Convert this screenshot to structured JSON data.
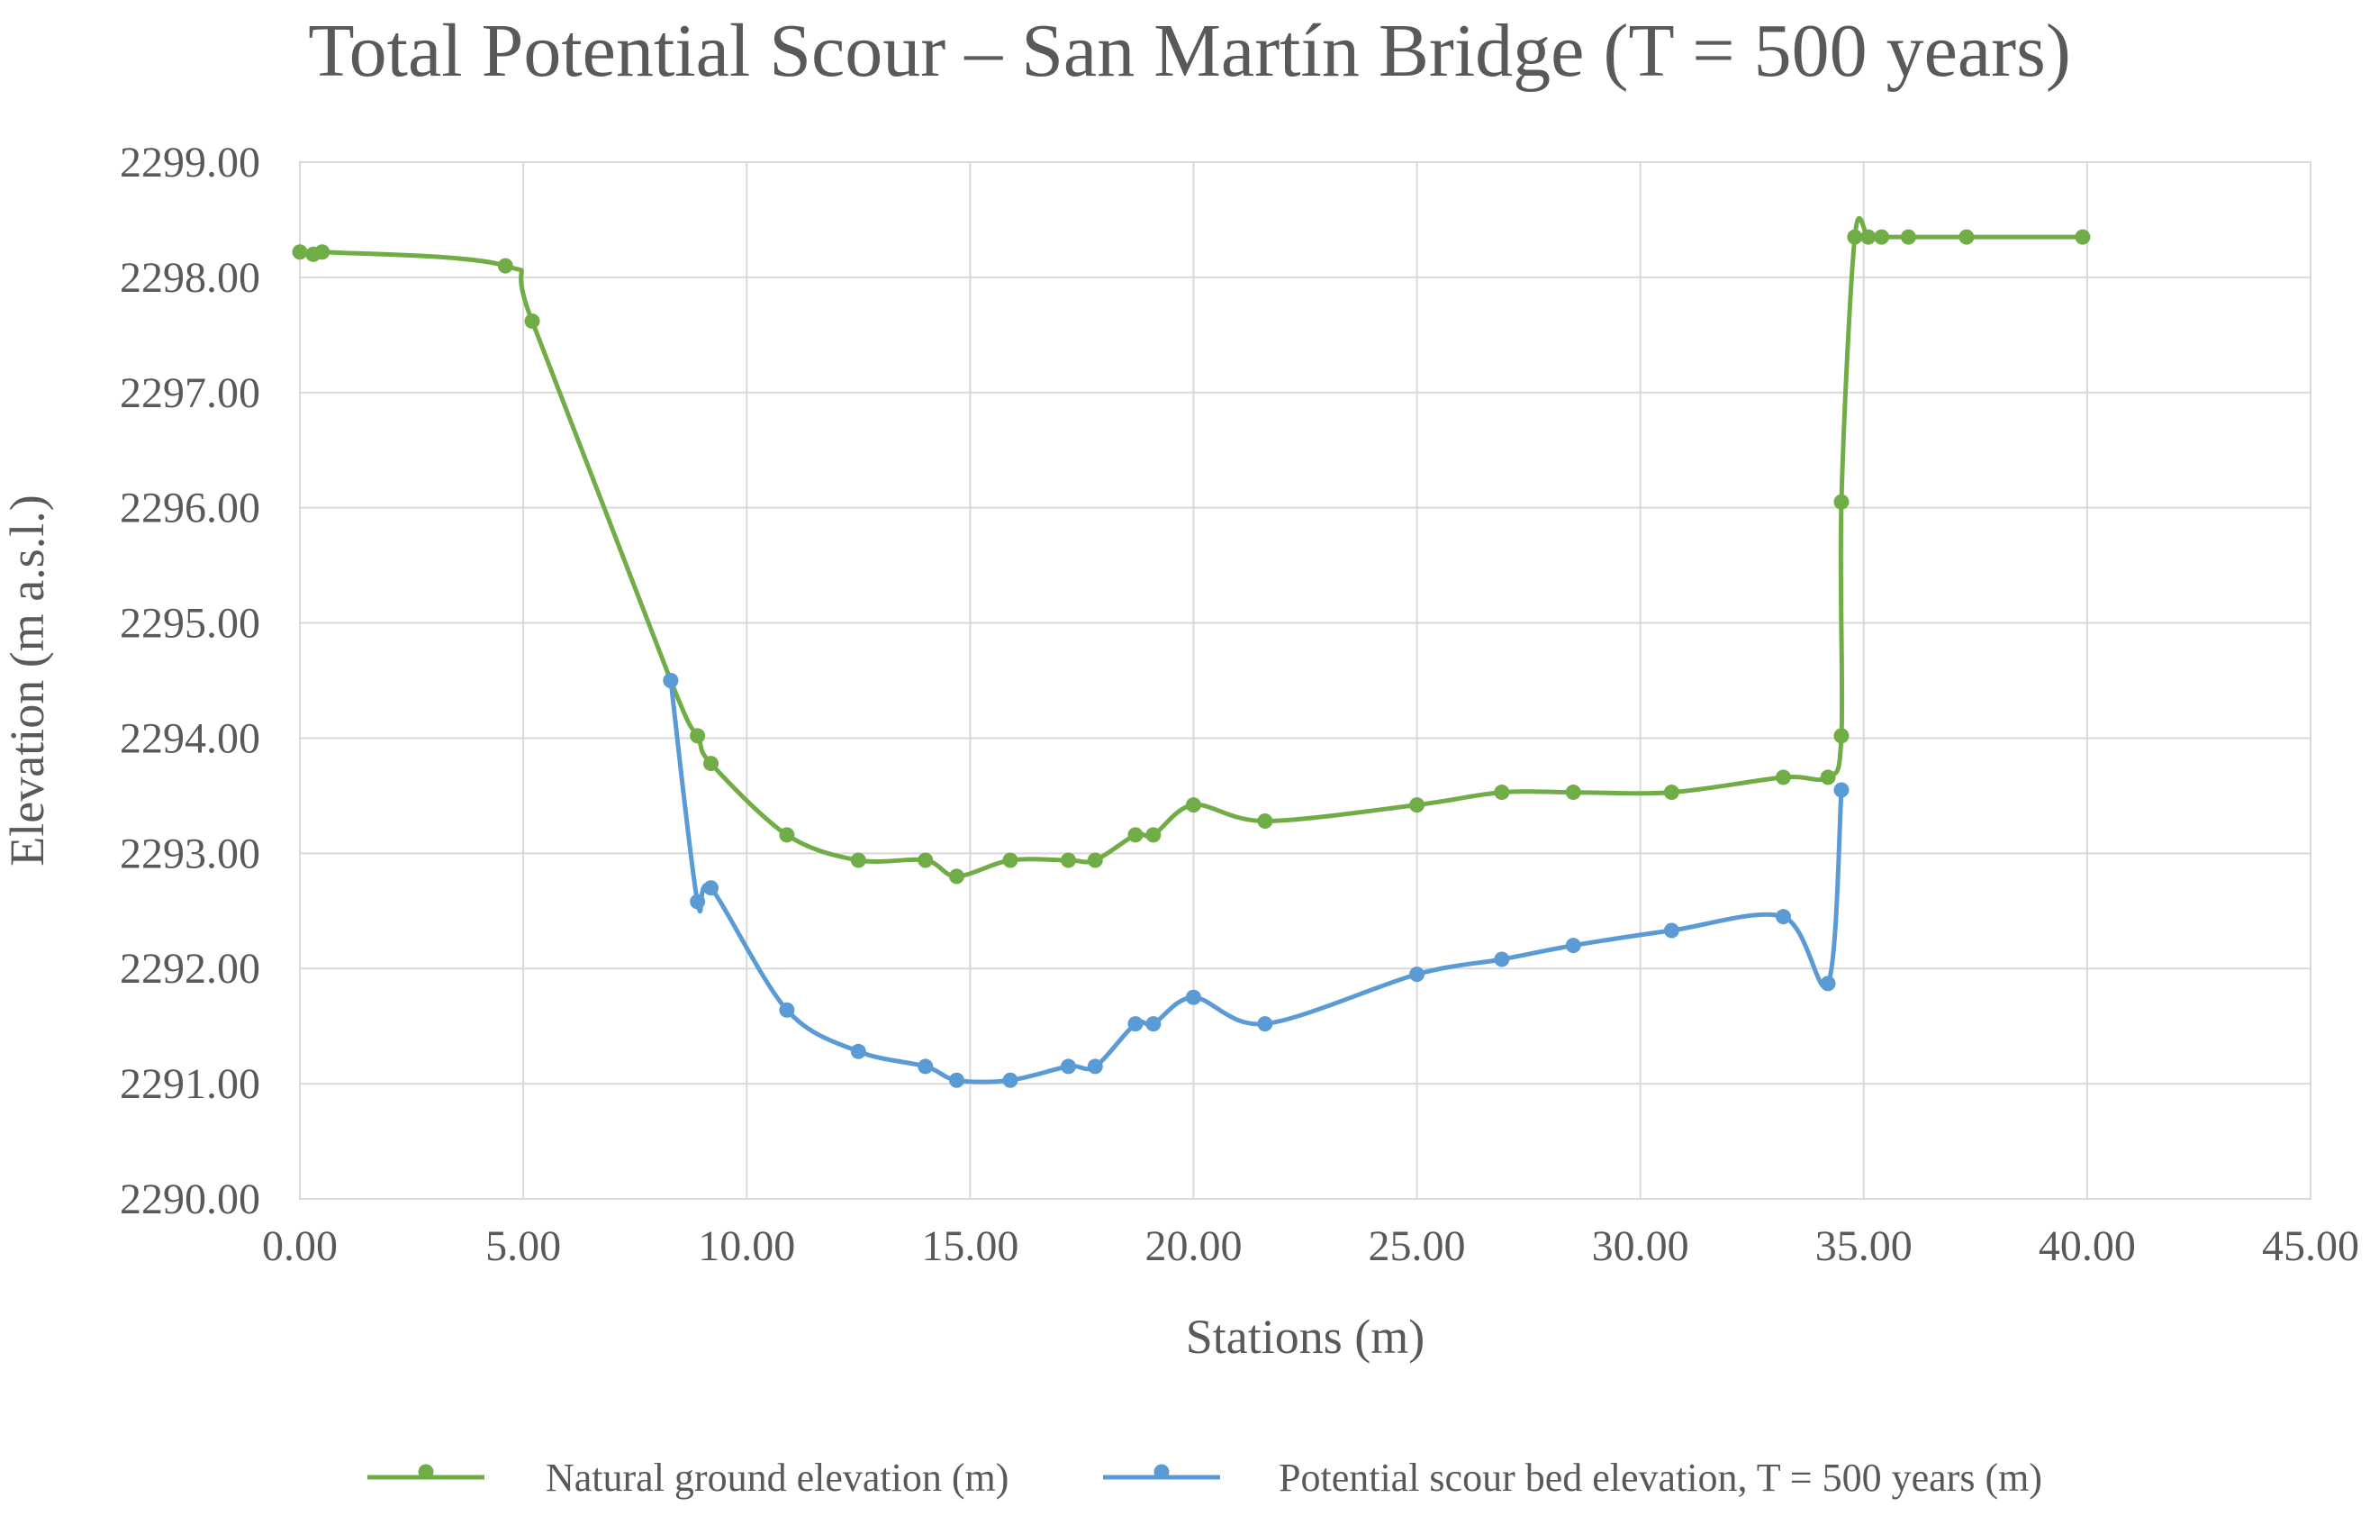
{
  "chart_data": {
    "type": "line",
    "title": "Total Potential Scour – San Martín Bridge (T = 500 years)",
    "xlabel": "Stations (m)",
    "ylabel": "Elevation  (m a.s.l.)",
    "xlim": [
      0,
      45
    ],
    "ylim": [
      2290,
      2299
    ],
    "x_ticks": [
      "0.00",
      "5.00",
      "10.00",
      "15.00",
      "20.00",
      "25.00",
      "30.00",
      "35.00",
      "40.00",
      "45.00"
    ],
    "y_ticks": [
      "2290.00",
      "2291.00",
      "2292.00",
      "2293.00",
      "2294.00",
      "2295.00",
      "2296.00",
      "2297.00",
      "2298.00",
      "2299.00"
    ],
    "grid": true,
    "legend_position": "bottom",
    "series": [
      {
        "name": "Natural ground elevation (m)",
        "color": "#70ad47",
        "smooth": true,
        "x": [
          0.0,
          0.3,
          0.5,
          4.6,
          5.2,
          8.3,
          8.9,
          9.2,
          10.9,
          12.5,
          14.0,
          14.7,
          15.9,
          17.2,
          17.8,
          18.7,
          19.1,
          20.0,
          21.6,
          25.0,
          26.9,
          28.5,
          30.7,
          33.2,
          34.2,
          34.5,
          34.5,
          34.8,
          35.1,
          35.4,
          36.0,
          37.3,
          39.9
        ],
        "y": [
          2298.22,
          2298.2,
          2298.22,
          2298.1,
          2297.62,
          2294.5,
          2294.02,
          2293.78,
          2293.16,
          2292.94,
          2292.94,
          2292.8,
          2292.94,
          2292.94,
          2292.94,
          2293.16,
          2293.16,
          2293.42,
          2293.28,
          2293.42,
          2293.53,
          2293.53,
          2293.53,
          2293.66,
          2293.66,
          2294.02,
          2296.05,
          2298.35,
          2298.35,
          2298.35,
          2298.35,
          2298.35,
          2298.35
        ]
      },
      {
        "name": "Potential scour bed elevation, T = 500 years (m)",
        "color": "#5b9bd5",
        "smooth": true,
        "x": [
          8.3,
          8.9,
          9.2,
          10.9,
          12.5,
          14.0,
          14.7,
          15.9,
          17.2,
          17.8,
          18.7,
          19.1,
          20.0,
          21.6,
          25.0,
          26.9,
          28.5,
          30.7,
          33.2,
          34.2,
          34.5
        ],
        "y": [
          2294.5,
          2292.58,
          2292.7,
          2291.64,
          2291.28,
          2291.15,
          2291.03,
          2291.03,
          2291.15,
          2291.15,
          2291.52,
          2291.52,
          2291.75,
          2291.52,
          2291.95,
          2292.08,
          2292.2,
          2292.33,
          2292.45,
          2291.87,
          2293.55
        ]
      }
    ]
  }
}
